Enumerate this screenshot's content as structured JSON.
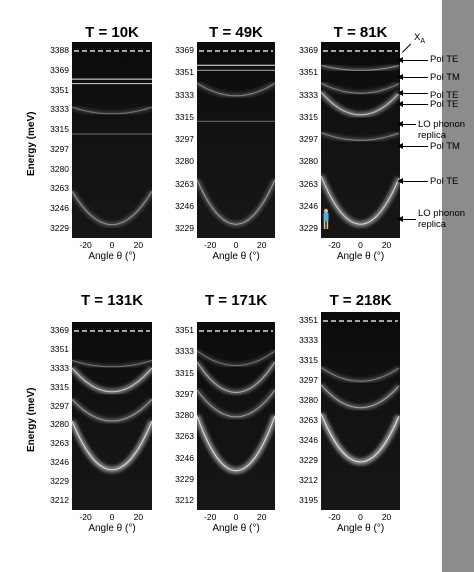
{
  "figure": {
    "ylabel": "Energy (meV)",
    "xlabel": "Angle θ (°)",
    "panels": [
      {
        "id": "p1",
        "title": "T = 10K",
        "yticks": [
          "3388",
          "3369",
          "3351",
          "3333",
          "3315",
          "3297",
          "3280",
          "3263",
          "3246",
          "3229"
        ],
        "xticks": [
          "-20",
          "0",
          "20"
        ],
        "bands": [
          {
            "energy": 3362,
            "curv": 0.0,
            "intensity": 1.0
          },
          {
            "energy": 3358,
            "curv": 0.0,
            "intensity": 0.9
          },
          {
            "energy": 3331,
            "curv": 6,
            "intensity": 0.35
          },
          {
            "energy": 3313,
            "curv": 0.0,
            "intensity": 0.45
          },
          {
            "energy": 3232,
            "curv": 30,
            "intensity": 0.45
          }
        ]
      },
      {
        "id": "p2",
        "title": "T = 49K",
        "yticks": [
          "3369",
          "3351",
          "3333",
          "3315",
          "3297",
          "3280",
          "3263",
          "3246",
          "3229"
        ],
        "xticks": [
          "-20",
          "0",
          "20"
        ],
        "bands": [
          {
            "energy": 3357,
            "curv": 0.0,
            "intensity": 1.0
          },
          {
            "energy": 3353,
            "curv": 0.0,
            "intensity": 0.7
          },
          {
            "energy": 3333,
            "curv": 10,
            "intensity": 0.4
          },
          {
            "energy": 3313,
            "curv": 0.0,
            "intensity": 0.45
          },
          {
            "energy": 3232,
            "curv": 35,
            "intensity": 0.5
          }
        ]
      },
      {
        "id": "p3",
        "title": "T = 81K",
        "yticks": [
          "3369",
          "3351",
          "3333",
          "3315",
          "3297",
          "3280",
          "3263",
          "3246",
          "3229"
        ],
        "xticks": [
          "-20",
          "0",
          "20"
        ],
        "bands": [
          {
            "energy": 3353,
            "curv": 4,
            "intensity": 0.45
          },
          {
            "energy": 3335,
            "curv": 8,
            "intensity": 0.4
          },
          {
            "energy": 3318,
            "curv": 18,
            "intensity": 0.7
          },
          {
            "energy": 3298,
            "curv": 6,
            "intensity": 0.4
          },
          {
            "energy": 3232,
            "curv": 38,
            "intensity": 0.8
          }
        ]
      },
      {
        "id": "p4",
        "title": "T = 131K",
        "yticks": [
          "3369",
          "3351",
          "3333",
          "3315",
          "3297",
          "3280",
          "3263",
          "3246",
          "3229",
          "3212"
        ],
        "xticks": [
          "-20",
          "0",
          "20"
        ],
        "bands": [
          {
            "energy": 3335,
            "curv": 6,
            "intensity": 0.35
          },
          {
            "energy": 3312,
            "curv": 22,
            "intensity": 0.75
          },
          {
            "energy": 3285,
            "curv": 20,
            "intensity": 0.5
          },
          {
            "energy": 3240,
            "curv": 45,
            "intensity": 0.85
          }
        ]
      },
      {
        "id": "p5",
        "title": "T = 171K",
        "yticks": [
          "3351",
          "3333",
          "3315",
          "3297",
          "3280",
          "3263",
          "3246",
          "3229",
          "3212"
        ],
        "xticks": [
          "-20",
          "0",
          "20"
        ],
        "bands": [
          {
            "energy": 3322,
            "curv": 12,
            "intensity": 0.35
          },
          {
            "energy": 3300,
            "curv": 25,
            "intensity": 0.6
          },
          {
            "energy": 3280,
            "curv": 22,
            "intensity": 0.5
          },
          {
            "energy": 3236,
            "curv": 45,
            "intensity": 0.85
          }
        ]
      },
      {
        "id": "p6",
        "title": "T = 218K",
        "yticks": [
          "3351",
          "3333",
          "3315",
          "3297",
          "3280",
          "3263",
          "3246",
          "3229",
          "3212",
          "3195"
        ],
        "xticks": [
          "-20",
          "0",
          "20"
        ],
        "bands": [
          {
            "energy": 3298,
            "curv": 12,
            "intensity": 0.4
          },
          {
            "energy": 3275,
            "curv": 20,
            "intensity": 0.55
          },
          {
            "energy": 3228,
            "curv": 42,
            "intensity": 0.9
          }
        ]
      }
    ],
    "annotations": [
      {
        "id": "a-xa",
        "label": "X",
        "sub": "A"
      },
      {
        "id": "a-polte1",
        "label": "Pol TE"
      },
      {
        "id": "a-poltm1",
        "label": "Pol TM"
      },
      {
        "id": "a-polte2",
        "label": "Pol TE"
      },
      {
        "id": "a-polte3",
        "label": "Pol TE"
      },
      {
        "id": "a-lo1",
        "label": "LO phonon\nreplica"
      },
      {
        "id": "a-poltm2",
        "label": "Pol TM"
      },
      {
        "id": "a-polte4",
        "label": "Pol TE"
      },
      {
        "id": "a-lo2",
        "label": "LO phonon\nreplica"
      }
    ],
    "colors": {
      "background": "#ffffff",
      "sidebar": "#8c8c8c",
      "band": "#ffffff",
      "dashed": "#ffffff"
    }
  }
}
